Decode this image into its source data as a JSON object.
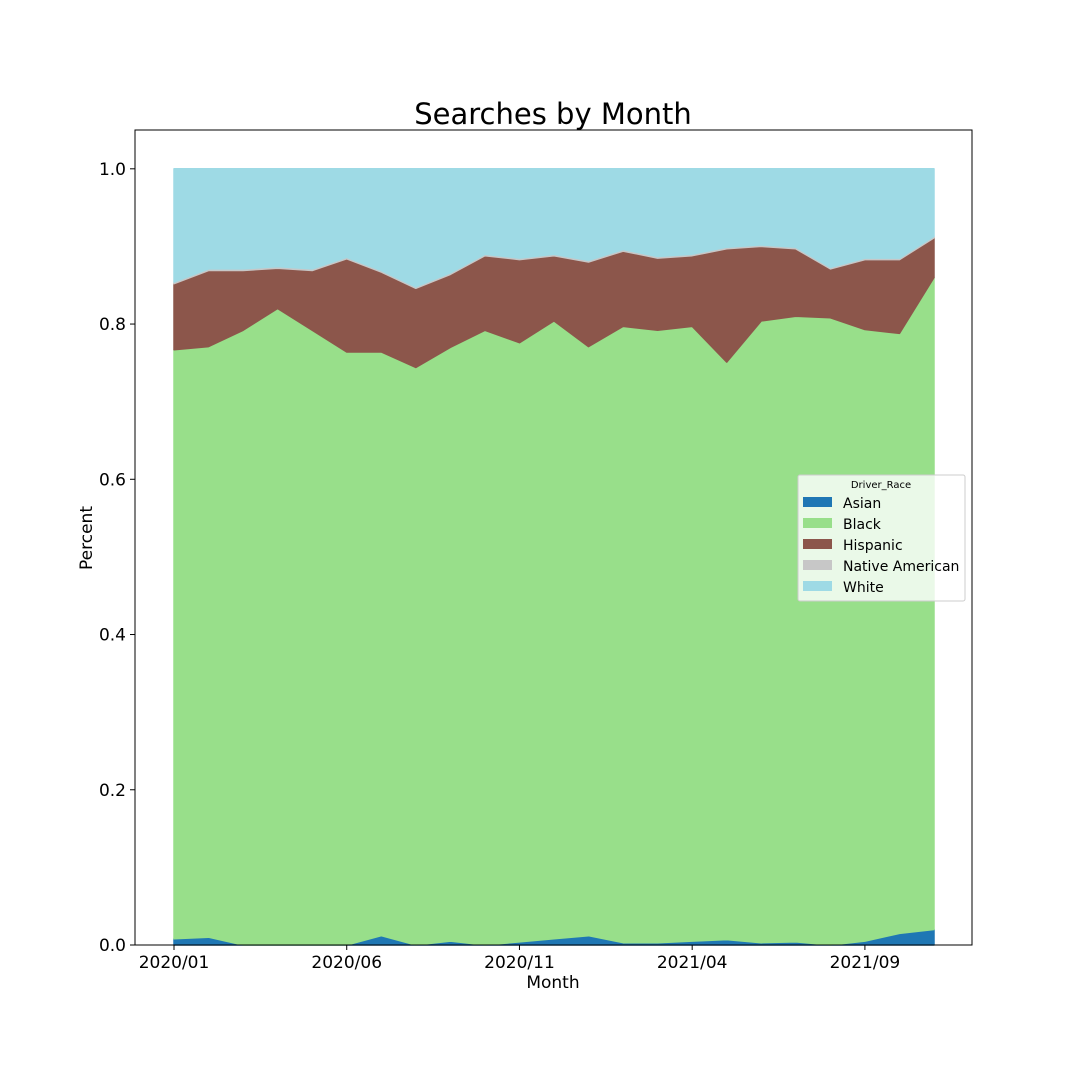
{
  "chart_data": {
    "type": "area",
    "stacked": true,
    "title": "Searches by Month",
    "xlabel": "Month",
    "ylabel": "Percent",
    "ylim": [
      0,
      1.05
    ],
    "yticks": [
      "0.0",
      "0.2",
      "0.4",
      "0.6",
      "0.8",
      "1.0"
    ],
    "x": [
      "2020/01",
      "2020/02",
      "2020/03",
      "2020/04",
      "2020/05",
      "2020/06",
      "2020/07",
      "2020/08",
      "2020/09",
      "2020/10",
      "2020/11",
      "2020/12",
      "2021/01",
      "2021/02",
      "2021/03",
      "2021/04",
      "2021/05",
      "2021/06",
      "2021/07",
      "2021/08",
      "2021/09",
      "2021/10",
      "2021/11"
    ],
    "xticks": [
      "2020/01",
      "2020/06",
      "2020/11",
      "2021/04",
      "2021/09"
    ],
    "grid": false,
    "legend": {
      "title": "Driver_Race",
      "placement": "center-right"
    },
    "series": [
      {
        "name": "Asian",
        "color": "#1f77b4",
        "values": [
          0.008,
          0.01,
          0.0,
          0.0,
          0.0,
          0.0,
          0.012,
          0.0,
          0.005,
          0.0,
          0.004,
          0.008,
          0.012,
          0.003,
          0.003,
          0.005,
          0.007,
          0.003,
          0.004,
          0.0,
          0.005,
          0.015,
          0.02
        ]
      },
      {
        "name": "Black",
        "color": "#98df8a",
        "values": [
          0.759,
          0.761,
          0.792,
          0.82,
          0.792,
          0.764,
          0.752,
          0.744,
          0.765,
          0.792,
          0.772,
          0.796,
          0.759,
          0.794,
          0.789,
          0.792,
          0.744,
          0.801,
          0.806,
          0.808,
          0.788,
          0.773,
          0.84
        ]
      },
      {
        "name": "Hispanic",
        "color": "#8c564b",
        "values": [
          0.085,
          0.098,
          0.077,
          0.052,
          0.077,
          0.12,
          0.103,
          0.102,
          0.094,
          0.096,
          0.107,
          0.084,
          0.109,
          0.097,
          0.093,
          0.091,
          0.146,
          0.096,
          0.087,
          0.063,
          0.09,
          0.095,
          0.051
        ]
      },
      {
        "name": "Native American",
        "color": "#c7c7c7",
        "values": [
          0.002,
          0.002,
          0.002,
          0.002,
          0.002,
          0.002,
          0.002,
          0.002,
          0.002,
          0.002,
          0.002,
          0.002,
          0.002,
          0.002,
          0.002,
          0.002,
          0.002,
          0.002,
          0.002,
          0.002,
          0.002,
          0.002,
          0.002
        ]
      },
      {
        "name": "White",
        "color": "#9edae5",
        "values": [
          0.146,
          0.129,
          0.129,
          0.126,
          0.129,
          0.114,
          0.131,
          0.152,
          0.134,
          0.11,
          0.115,
          0.11,
          0.118,
          0.104,
          0.113,
          0.11,
          0.101,
          0.098,
          0.101,
          0.127,
          0.115,
          0.115,
          0.087
        ]
      }
    ]
  }
}
